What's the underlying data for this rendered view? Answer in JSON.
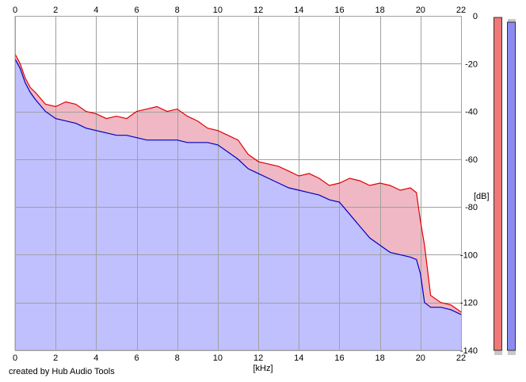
{
  "credit": "created by Hub Audio Tools",
  "colors": {
    "background": "#ffffff",
    "grid": "#a0a0a0",
    "left_channel_line": "#e00000",
    "right_channel_line": "#0000c0",
    "left_channel_fill": "#f0b8c4",
    "right_channel_fill": "#c0c0ff",
    "left_meter_fill": "#f07878",
    "right_meter_fill": "#8c8cf0"
  },
  "chart_data": {
    "type": "area",
    "title": "",
    "xlabel": "[kHz]",
    "ylabel": "[dB]",
    "xlim": [
      0,
      22
    ],
    "ylim": [
      -140,
      0
    ],
    "x_ticks": [
      "0",
      "2",
      "4",
      "6",
      "8",
      "10",
      "12",
      "14",
      "16",
      "18",
      "20",
      "22"
    ],
    "y_ticks": [
      "0",
      "-20",
      "-40",
      "-60",
      "-80",
      "-100",
      "-120",
      "-140"
    ],
    "x_tick_positions": [
      0,
      2,
      4,
      6,
      8,
      10,
      12,
      14,
      16,
      18,
      20,
      22
    ],
    "y_tick_positions": [
      0,
      -20,
      -40,
      -60,
      -80,
      -100,
      -120,
      -140
    ],
    "grid": true,
    "series": [
      {
        "color": "#e00000",
        "x": [
          0,
          0.25,
          0.5,
          0.75,
          1,
          1.5,
          2,
          2.5,
          3,
          3.5,
          4,
          4.5,
          5,
          5.5,
          6,
          6.5,
          7,
          7.5,
          8,
          8.5,
          9,
          9.5,
          10,
          10.5,
          11,
          11.5,
          12,
          12.5,
          13,
          13.5,
          14,
          14.5,
          15,
          15.5,
          16,
          16.5,
          17,
          17.5,
          18,
          18.5,
          19,
          19.5,
          19.8,
          20,
          20.2,
          20.5,
          21,
          21.5,
          22
        ],
        "values": [
          -16,
          -20,
          -26,
          -30,
          -32,
          -37,
          -38,
          -36,
          -37,
          -40,
          -41,
          -43,
          -42,
          -43,
          -40,
          -39,
          -38,
          -40,
          -39,
          -42,
          -44,
          -47,
          -48,
          -50,
          -52,
          -58,
          -61,
          -62,
          -63,
          -65,
          -67,
          -66,
          -68,
          -71,
          -70,
          -68,
          -69,
          -71,
          -70,
          -71,
          -73,
          -72,
          -74,
          -86,
          -96,
          -117,
          -120,
          -121,
          -124
        ]
      },
      {
        "color": "#0000c0",
        "x": [
          0,
          0.25,
          0.5,
          0.75,
          1,
          1.5,
          2,
          2.5,
          3,
          3.5,
          4,
          4.5,
          5,
          5.5,
          6,
          6.5,
          7,
          7.5,
          8,
          8.5,
          9,
          9.5,
          10,
          10.5,
          11,
          11.5,
          12,
          12.5,
          13,
          13.5,
          14,
          14.5,
          15,
          15.5,
          16,
          16.5,
          17,
          17.5,
          18,
          18.5,
          19,
          19.5,
          19.8,
          20,
          20.2,
          20.5,
          21,
          21.5,
          22
        ],
        "values": [
          -18,
          -22,
          -28,
          -32,
          -35,
          -40,
          -43,
          -44,
          -45,
          -47,
          -48,
          -49,
          -50,
          -50,
          -51,
          -52,
          -52,
          -52,
          -52,
          -53,
          -53,
          -53,
          -54,
          -57,
          -60,
          -64,
          -66,
          -68,
          -70,
          -72,
          -73,
          -74,
          -75,
          -77,
          -78,
          -83,
          -88,
          -93,
          -96,
          -99,
          -100,
          -101,
          -102,
          -108,
          -120,
          -122,
          -122,
          -123,
          -125
        ]
      }
    ],
    "level_meters": [
      {
        "color": "#f07878",
        "level_db": 0
      },
      {
        "color": "#8c8cf0",
        "level_db": 0
      }
    ]
  }
}
